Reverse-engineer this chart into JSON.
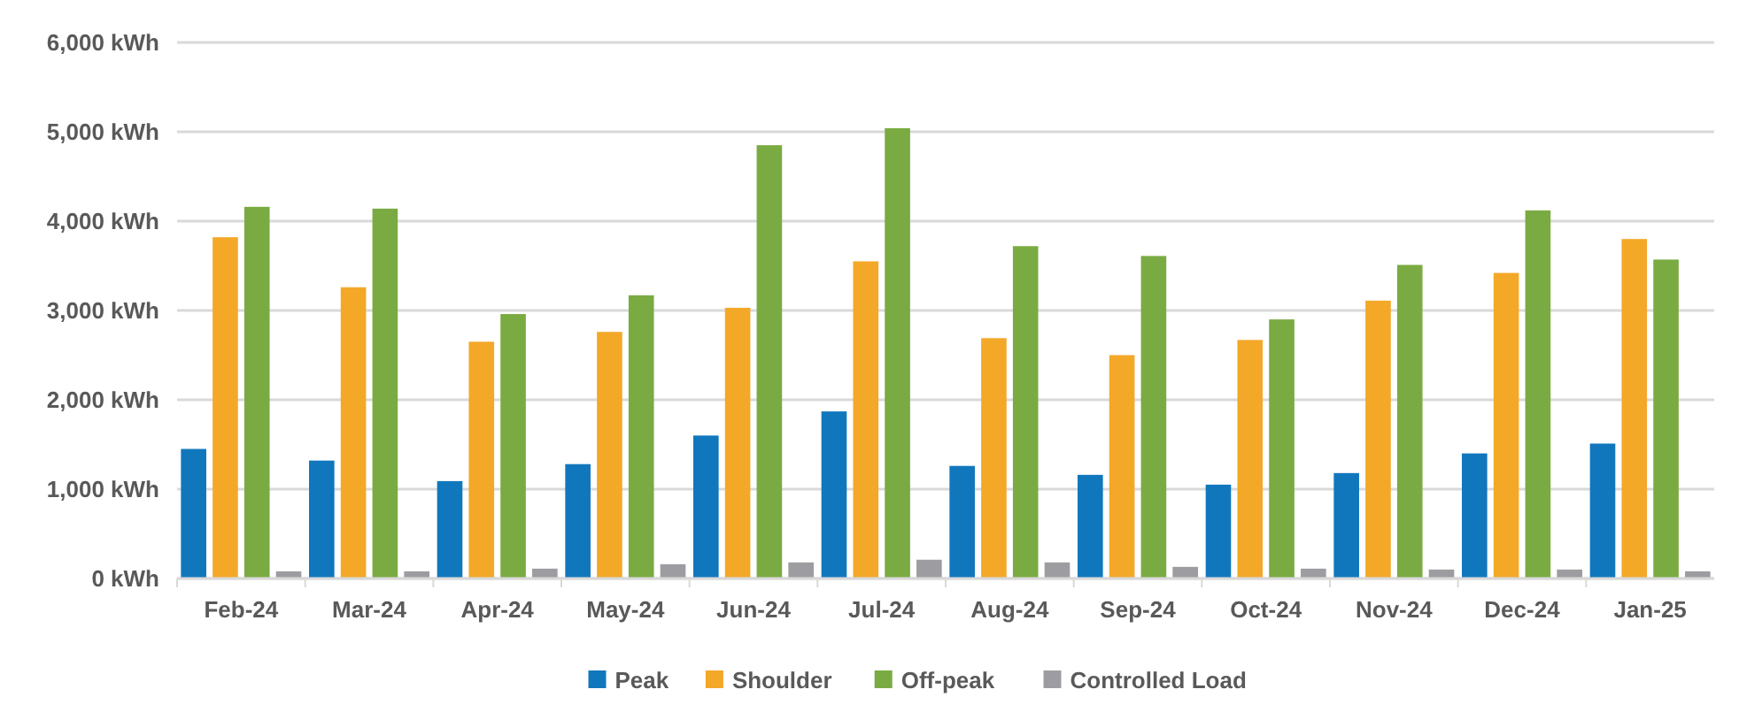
{
  "chart_data": {
    "type": "bar",
    "categories": [
      "Feb-24",
      "Mar-24",
      "Apr-24",
      "May-24",
      "Jun-24",
      "Jul-24",
      "Aug-24",
      "Sep-24",
      "Oct-24",
      "Nov-24",
      "Dec-24",
      "Jan-25"
    ],
    "series": [
      {
        "name": "Peak",
        "color": "#1177bd",
        "values": [
          1450,
          1320,
          1090,
          1280,
          1600,
          1870,
          1260,
          1160,
          1050,
          1180,
          1400,
          1510
        ]
      },
      {
        "name": "Shoulder",
        "color": "#f4a828",
        "values": [
          3820,
          3260,
          2650,
          2760,
          3030,
          3550,
          2690,
          2500,
          2670,
          3110,
          3420,
          3800
        ]
      },
      {
        "name": "Off-peak",
        "color": "#7aab42",
        "values": [
          4160,
          4140,
          2960,
          3170,
          4850,
          5040,
          3720,
          3610,
          2900,
          3510,
          4120,
          3570
        ]
      },
      {
        "name": "Controlled Load",
        "color": "#9d9da1",
        "values": [
          80,
          80,
          110,
          160,
          180,
          210,
          180,
          130,
          110,
          100,
          100,
          80
        ]
      }
    ],
    "ylim": [
      0,
      6000
    ],
    "yticks": [
      {
        "value": 0,
        "label": "0 kWh"
      },
      {
        "value": 1000,
        "label": "1,000 kWh"
      },
      {
        "value": 2000,
        "label": "2,000 kWh"
      },
      {
        "value": 3000,
        "label": "3,000 kWh"
      },
      {
        "value": 4000,
        "label": "4,000 kWh"
      },
      {
        "value": 5000,
        "label": "5,000 kWh"
      },
      {
        "value": 6000,
        "label": "6,000 kWh"
      }
    ],
    "grid": "y",
    "legend": "bottom"
  }
}
